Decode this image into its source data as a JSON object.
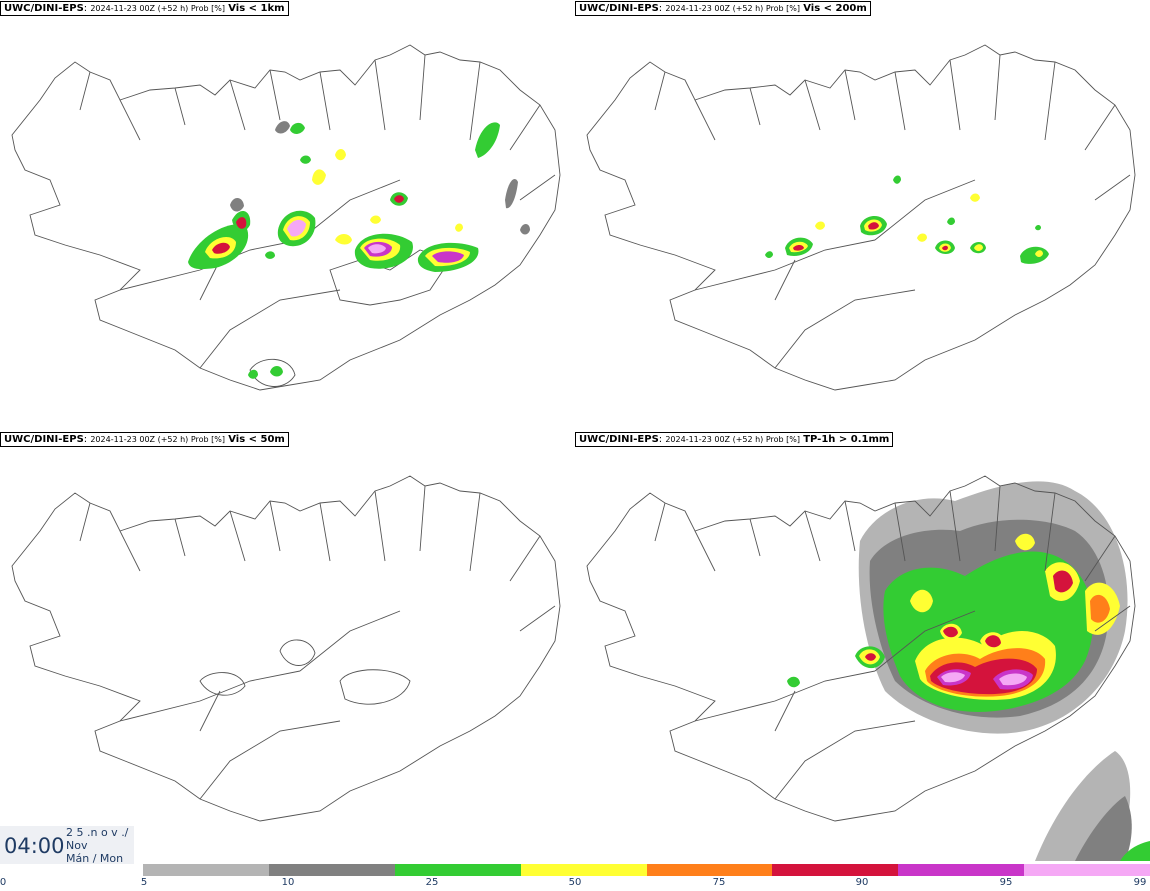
{
  "panels": [
    {
      "model": "UWC/DINI-EPS",
      "run": "2024-11-23 00Z (+52 h) Prob [%]",
      "variable": "Vis < 1km"
    },
    {
      "model": "UWC/DINI-EPS",
      "run": "2024-11-23 00Z (+52 h) Prob [%]",
      "variable": "Vis < 200m"
    },
    {
      "model": "UWC/DINI-EPS",
      "run": "2024-11-23 00Z (+52 h) Prob [%]",
      "variable": "Vis < 50m"
    },
    {
      "model": "UWC/DINI-EPS",
      "run": "2024-11-23 00Z (+52 h) Prob [%]",
      "variable": "TP-1h > 0.1mm"
    }
  ],
  "valid_time": {
    "time": "04:00",
    "date_line1": "2 5 .n o v ./",
    "date_line2": "Nov",
    "date_line3": "Mán / Mon"
  },
  "colorbar": {
    "ticks": [
      "0",
      "5",
      "10",
      "25",
      "50",
      "75",
      "90",
      "95",
      "99"
    ],
    "colors": [
      "#b4b4b4",
      "#808080",
      "#33cc33",
      "#ffff33",
      "#ff7f1a",
      "#d4133c",
      "#c935c9",
      "#f5a8f5"
    ]
  },
  "map": {
    "region": "Iceland",
    "land_outline_color": "#555555",
    "field_colors": {
      "gray_light": "#b4b4b4",
      "gray_dark": "#808080",
      "green": "#33cc33",
      "yellow": "#ffff33",
      "orange": "#ff7f1a",
      "red": "#d4133c",
      "magenta": "#c935c9",
      "pink": "#f5a8f5"
    }
  }
}
